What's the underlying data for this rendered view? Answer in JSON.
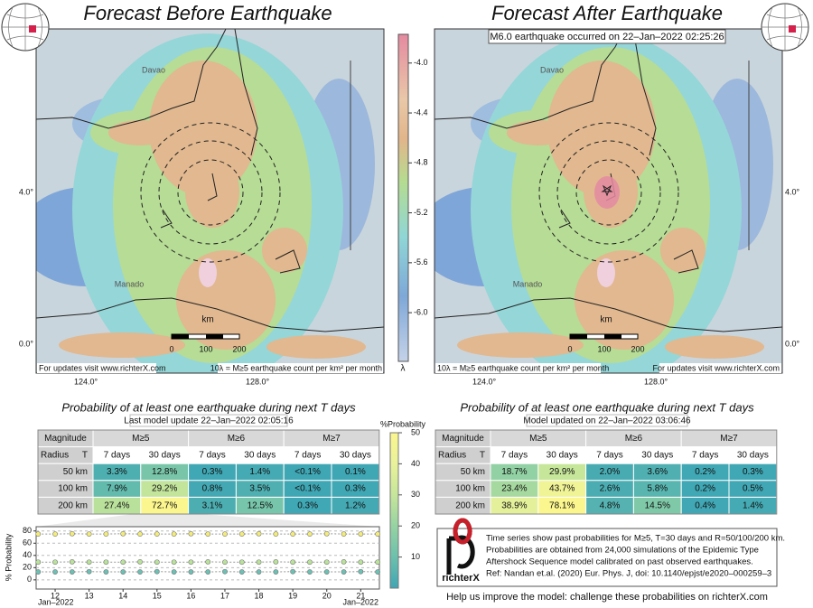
{
  "left_panel": {
    "title": "Forecast Before Earthquake",
    "table_title": "Probability of at least one earthquake during next T days",
    "update": "Last model update 22–Jan–2022 02:05:16"
  },
  "right_panel": {
    "title": "Forecast After Earthquake",
    "annotation": "M6.0 earthquake occurred on 22–Jan–2022 02:25:26",
    "table_title": "Probability of at least one earthquake during next T days",
    "update": "Model updated on 22–Jan–2022 03:06:46"
  },
  "map": {
    "places": [
      "Davao",
      "Manado"
    ],
    "scale_unit": "km",
    "scale_ticks": [
      "0",
      "100",
      "200"
    ],
    "lat_labels": [
      "4.0°",
      "0.0°"
    ],
    "lon_labels": [
      "124.0°",
      "128.0°"
    ],
    "updates_text": "For updates visit www.richterX.com",
    "legend_text": "10λ = M≥5 earthquake count per km² per month"
  },
  "colorbar": {
    "label": "λ",
    "lim": [
      -6.39,
      -3.77
    ],
    "ticks": [
      {
        "value": -4,
        "label": "-4.0"
      },
      {
        "value": -4.4,
        "label": "-4.4"
      },
      {
        "value": -4.8,
        "label": "-4.8"
      },
      {
        "value": -5.2,
        "label": "-5.2"
      },
      {
        "value": -5.6,
        "label": "-5.6"
      },
      {
        "value": -6,
        "label": "-6.0"
      }
    ]
  },
  "probability_scale": {
    "title": "%Probability",
    "lim": [
      0,
      50
    ],
    "ticks": [
      10,
      20,
      30,
      40,
      50
    ]
  },
  "left_table": {
    "header": [
      "Magnitude",
      "M≥5",
      "M≥6",
      "M≥7"
    ],
    "radius_label": "Radius",
    "t_label": "T",
    "periods": [
      "7 days",
      "30 days"
    ],
    "rows": [
      [
        "50 km",
        "3.3%",
        "12.8%",
        "0.3%",
        "1.4%",
        "<0.1%",
        "0.1%"
      ],
      [
        "100 km",
        "7.9%",
        "29.2%",
        "0.8%",
        "3.5%",
        "<0.1%",
        "0.3%"
      ],
      [
        "200 km",
        "27.4%",
        "72.7%",
        "3.1%",
        "12.5%",
        "0.3%",
        "1.2%"
      ]
    ]
  },
  "right_table": {
    "header": [
      "Magnitude",
      "M≥5",
      "M≥6",
      "M≥7"
    ],
    "radius_label": "Radius",
    "t_label": "T",
    "periods": [
      "7 days",
      "30 days"
    ],
    "rows": [
      [
        "50 km",
        "18.7%",
        "29.9%",
        "2.0%",
        "3.6%",
        "0.2%",
        "0.3%"
      ],
      [
        "100 km",
        "23.4%",
        "43.7%",
        "2.6%",
        "5.8%",
        "0.2%",
        "0.5%"
      ],
      [
        "200 km",
        "38.9%",
        "78.1%",
        "4.8%",
        "14.5%",
        "0.4%",
        "1.4%"
      ]
    ]
  },
  "chart_data": {
    "type": "scatter",
    "y_label": "% Probability",
    "x_edge_labels": [
      "Jan–2022",
      "Jan–2022"
    ],
    "x": [
      11.5,
      12,
      12.5,
      13,
      13.5,
      14,
      14.5,
      15,
      15.5,
      16,
      16.5,
      17,
      17.5,
      18,
      18.5,
      19,
      19.5,
      20,
      20.5,
      21,
      21.5
    ],
    "xlim": [
      11.44,
      21.55
    ],
    "xticks": [
      12,
      13,
      14,
      15,
      16,
      17,
      18,
      19,
      20,
      21
    ],
    "ylim": [
      -15,
      87
    ],
    "yticks": [
      0,
      20,
      40,
      60,
      80
    ],
    "grid": true,
    "series": [
      {
        "color": "#f3ec7a",
        "values": [
          75,
          75,
          75.5,
          75,
          75,
          75.5,
          75,
          75,
          75,
          75.5,
          75,
          75,
          75,
          75.5,
          75,
          75,
          75,
          75.5,
          75,
          75,
          75
        ]
      },
      {
        "color": "#b9e29a",
        "values": [
          29,
          29,
          29.5,
          29,
          29,
          29,
          29.5,
          29,
          29,
          29,
          29.5,
          29,
          29,
          29,
          29.5,
          29,
          29,
          29,
          29.5,
          29,
          29
        ]
      },
      {
        "color": "#6cc0b4",
        "values": [
          13,
          13,
          13,
          13.5,
          13,
          13,
          13,
          13.5,
          13,
          13,
          13,
          13.5,
          13,
          13,
          13,
          13.5,
          13,
          13,
          13,
          13.5,
          13
        ]
      }
    ]
  },
  "info": {
    "logo": "richterX",
    "lines": [
      "Time series show past probabilities for M≥5, T=30 days and R=50/100/200 km.",
      "Probabilities are obtained from 24,000 simulations of the Epidemic Type",
      "Aftershock Sequence model calibrated on past observed earthquakes.",
      "Ref: Nandan et.al. (2020) Eur. Phys. J, doi: 10.1140/epjst/e2020–000259–3"
    ]
  },
  "footer": "Help us improve the model: challenge these probabilities on richterX.com"
}
